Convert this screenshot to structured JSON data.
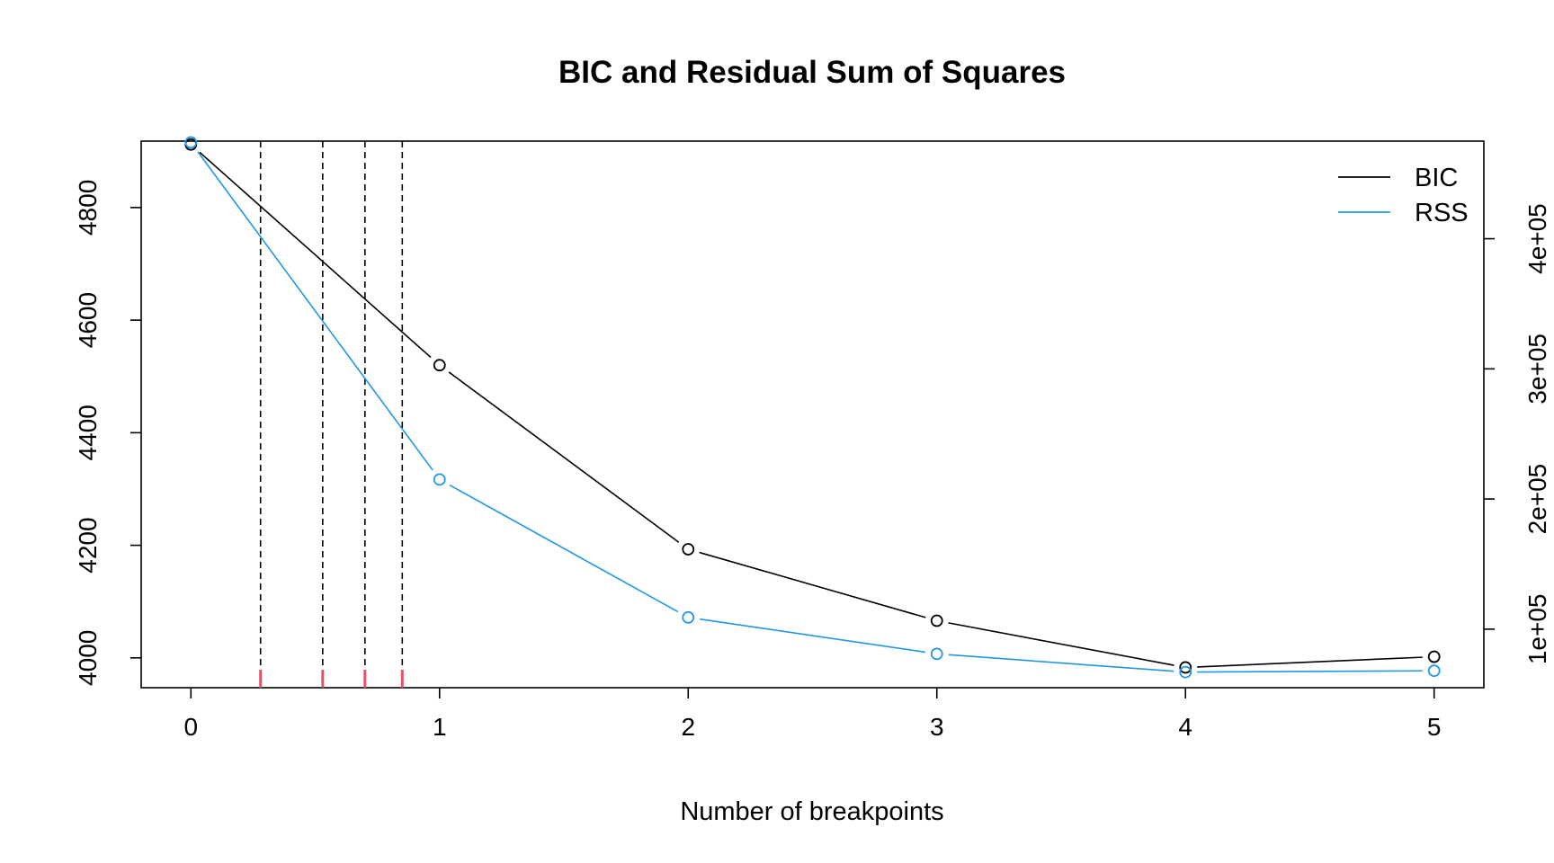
{
  "chart_data": {
    "type": "line",
    "title": "BIC and Residual Sum of Squares",
    "xlabel": "Number of breakpoints",
    "ylabel": "",
    "ylabel_right": "",
    "x": [
      0,
      1,
      2,
      3,
      4,
      5
    ],
    "xlim": [
      -0.2,
      5.2
    ],
    "x_ticks": [
      "0",
      "1",
      "2",
      "3",
      "4",
      "5"
    ],
    "ylim_left": [
      3947,
      4918
    ],
    "y_ticks_left": [
      4000,
      4200,
      4400,
      4600,
      4800
    ],
    "ylim_right": [
      55000,
      475000
    ],
    "y_ticks_right": [
      100000,
      200000,
      300000,
      400000
    ],
    "y_tick_labels_right": [
      "1e+05",
      "2e+05",
      "3e+05",
      "4e+05"
    ],
    "series": [
      {
        "name": "BIC",
        "axis": "left",
        "color": "#000000",
        "values": [
          4912,
          4520,
          4193,
          4066,
          3983,
          4002
        ]
      },
      {
        "name": "RSS",
        "axis": "right",
        "color": "#2297E6",
        "values": [
          474000,
          215000,
          109000,
          81000,
          67000,
          68000
        ]
      }
    ],
    "vertical_lines": [
      0.28,
      0.53,
      0.7,
      0.85
    ],
    "rug_marks": [
      0.28,
      0.53,
      0.7,
      0.85
    ],
    "rug_color": "#DF536B",
    "legend": {
      "placement": "top-right"
    },
    "grid": false
  }
}
